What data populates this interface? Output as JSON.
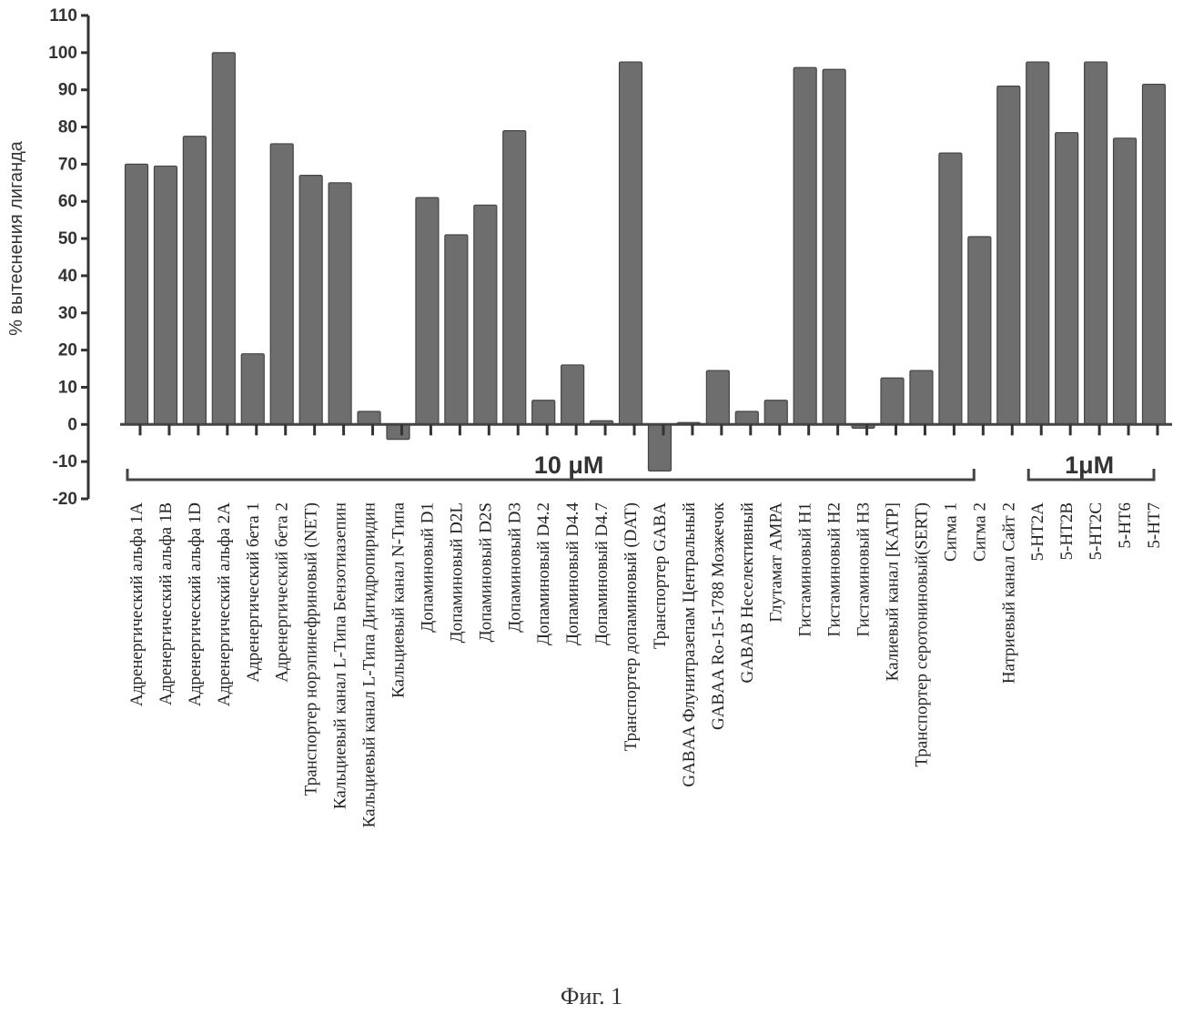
{
  "chart_data": {
    "type": "bar",
    "ylabel": "% вытеснения лиганда",
    "ylim": [
      -20,
      110
    ],
    "yticks": [
      110,
      100,
      90,
      80,
      70,
      60,
      50,
      40,
      30,
      20,
      10,
      0,
      -10,
      -20
    ],
    "grid": false,
    "legend": "none",
    "bar_color": "#6e6e6e",
    "categories": [
      "Адренергический альфа 1A",
      "Адренергический альфа 1B",
      "Адренергический альфа 1D",
      "Адренергический альфа 2A",
      "Адренергический бета 1",
      "Адренергический бета 2",
      "Транспортер норэпинефриновый (NET)",
      "Кальциевый канал L-Типа Бензотиазепин",
      "Кальциевый канал L-Типа Дигидропиридин",
      "Кальциевый канал N-Типа",
      "Допаминовый D1",
      "Допаминовый D2L",
      "Допаминовый D2S",
      "Допаминовый  D3",
      "Допаминовый D4.2",
      "Допаминовый  D4.4",
      "Допаминовый D4.7",
      "Транспортер допаминовый (DAT)",
      "Транспортер GABA",
      "GABAA Флунитразепам Центральный",
      "GABAA Ro-15-1788 Мозжечок",
      "GABAB Неселективный",
      "Глутамат AMPA",
      "Гистаминовый H1",
      "Гистаминовый H2",
      "Гистаминовый H3",
      "Калиевый канал [KATP]",
      "Транспортер серотониновый(SERT)",
      "Сигма 1",
      "Сигма 2",
      "Натриевый канал Сайт 2",
      "5-HT2A",
      "5-HT2B",
      "5-HT2C",
      "5-HT6",
      "5-HT7"
    ],
    "values": [
      70,
      69.5,
      77.5,
      100,
      19,
      75.5,
      67,
      65,
      3.5,
      -4,
      61,
      51,
      59,
      79,
      6.5,
      16,
      1,
      97.5,
      -12.5,
      0.5,
      14.5,
      3.5,
      6.5,
      96,
      95.5,
      -1,
      12.5,
      14.5,
      73,
      50.5,
      91,
      97.5,
      78.5,
      97.5,
      77,
      91.5
    ],
    "groups": [
      {
        "label": "10 μM",
        "from": 0,
        "to": 30
      },
      {
        "label": "1μM",
        "from": 31,
        "to": 35
      }
    ]
  },
  "caption": "Фиг. 1"
}
